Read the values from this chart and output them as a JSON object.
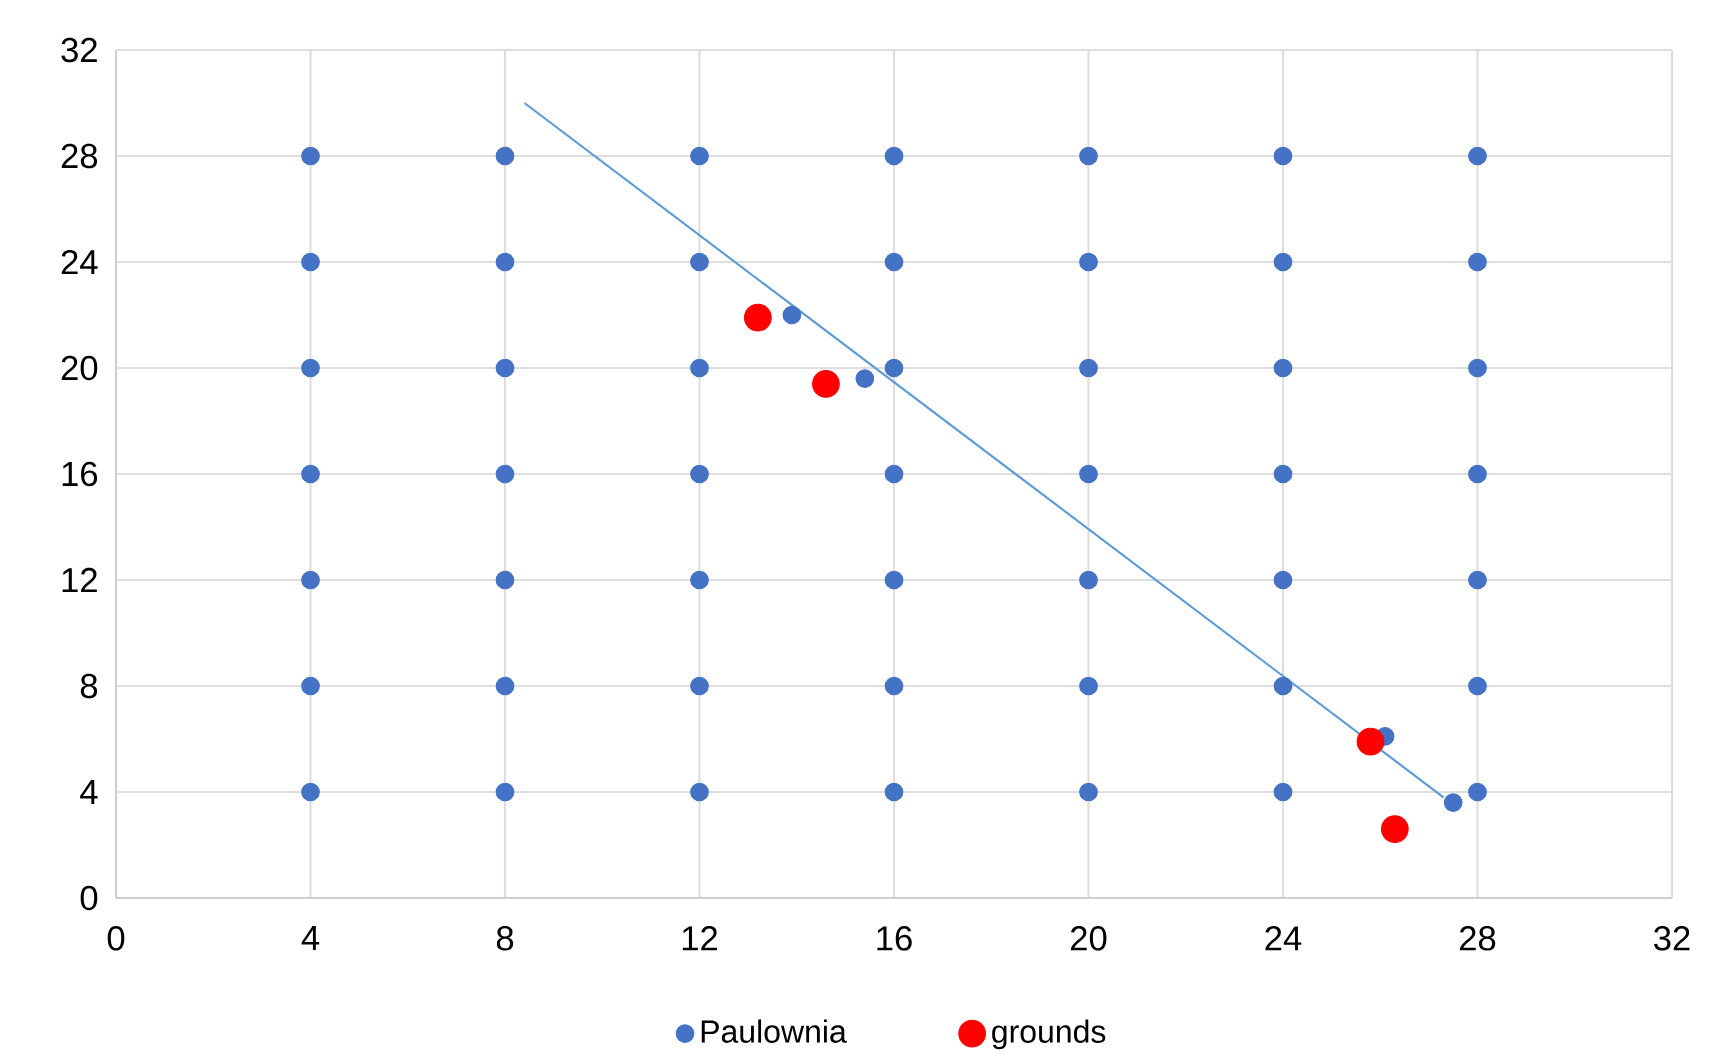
{
  "chart_data": {
    "type": "scatter",
    "xlim": [
      0,
      32
    ],
    "ylim": [
      0,
      32
    ],
    "xticks": [
      0,
      4,
      8,
      12,
      16,
      20,
      24,
      28,
      32
    ],
    "yticks": [
      0,
      4,
      8,
      12,
      16,
      20,
      24,
      28,
      32
    ],
    "grid": true,
    "legend": "bottom",
    "series": [
      {
        "name": "Paulownia",
        "color": "#4472c4",
        "x": [
          4,
          4,
          4,
          4,
          4,
          4,
          4,
          8,
          8,
          8,
          8,
          8,
          8,
          8,
          12,
          12,
          12,
          12,
          12,
          12,
          12,
          16,
          16,
          16,
          16,
          16,
          16,
          16,
          20,
          20,
          20,
          20,
          20,
          20,
          20,
          24,
          24,
          24,
          24,
          24,
          24,
          24,
          28,
          28,
          28,
          28,
          28,
          28,
          28,
          13.9,
          15.4,
          26.1,
          27.5
        ],
        "values": [
          4,
          8,
          12,
          16,
          20,
          24,
          28,
          4,
          8,
          12,
          16,
          20,
          24,
          28,
          4,
          8,
          12,
          16,
          20,
          24,
          28,
          4,
          8,
          12,
          16,
          20,
          24,
          28,
          4,
          8,
          12,
          16,
          20,
          24,
          28,
          4,
          8,
          12,
          16,
          20,
          24,
          28,
          4,
          8,
          12,
          16,
          20,
          24,
          28,
          22,
          19.6,
          6.1,
          3.6
        ]
      },
      {
        "name": "grounds",
        "color": "#ff0000",
        "x": [
          13.2,
          14.6,
          25.8,
          26.3
        ],
        "values": [
          21.9,
          19.4,
          5.9,
          2.6
        ]
      },
      {
        "type": "line",
        "color": "#5b9bd5",
        "x": [
          8.4,
          27.3
        ],
        "values": [
          30,
          3.8
        ]
      }
    ]
  }
}
